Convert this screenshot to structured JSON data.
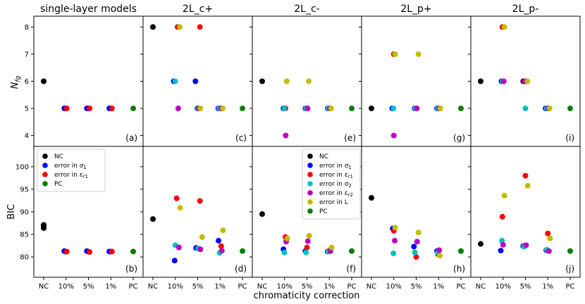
{
  "chart_data": {
    "type": "scatter",
    "x_categories": [
      "NC",
      "10%",
      "5%",
      "1%",
      "PC"
    ],
    "xlabel": "chromaticity correction",
    "ylabels": {
      "top": "N_fg",
      "bottom": "BIC"
    },
    "ylabel_top_main": "N",
    "ylabel_top_sub": "fg",
    "ylim_top": [
      3.6,
      8.4
    ],
    "ylim_bottom": [
      75.5,
      104.5
    ],
    "yticks_top": [
      4,
      5,
      6,
      7,
      8
    ],
    "yticks_bottom": [
      80,
      85,
      90,
      95,
      100
    ],
    "colors": {
      "NC": "#000000",
      "s1": "#0000ff",
      "er1": "#ff0000",
      "s2": "#00bfbf",
      "er2": "#bf00bf",
      "L": "#bfbf00",
      "PC": "#008000"
    },
    "legend_small": [
      {
        "key": "NC",
        "label": "NC"
      },
      {
        "key": "s1",
        "label": "error in σ",
        "sub": "1"
      },
      {
        "key": "er1",
        "label": "error in ε",
        "sub": "r1"
      },
      {
        "key": "PC",
        "label": "PC"
      }
    ],
    "legend_big": [
      {
        "key": "NC",
        "label": "NC"
      },
      {
        "key": "s1",
        "label": "error in σ",
        "sub": "1"
      },
      {
        "key": "er1",
        "label": "error in ε",
        "sub": "r1"
      },
      {
        "key": "s2",
        "label": "error in σ",
        "sub": "2"
      },
      {
        "key": "er2",
        "label": "error in ε",
        "sub": "r2"
      },
      {
        "key": "L",
        "label": "error in L"
      },
      {
        "key": "PC",
        "label": "PC"
      }
    ],
    "columns": [
      {
        "title": "single-layer models",
        "top_label": "(a)",
        "bottom_label": "(b)",
        "top": [
          {
            "key": "NC",
            "x": 0,
            "y": 6
          },
          {
            "key": "s1",
            "x": 0.92,
            "y": 5
          },
          {
            "key": "s1",
            "x": 0.97,
            "y": 5
          },
          {
            "key": "er1",
            "x": 1.03,
            "y": 5
          },
          {
            "key": "s1",
            "x": 1.93,
            "y": 5
          },
          {
            "key": "s1",
            "x": 1.98,
            "y": 5
          },
          {
            "key": "er1",
            "x": 2.05,
            "y": 5
          },
          {
            "key": "s1",
            "x": 2.93,
            "y": 5
          },
          {
            "key": "s1",
            "x": 2.98,
            "y": 5
          },
          {
            "key": "er1",
            "x": 3.05,
            "y": 5
          },
          {
            "key": "PC",
            "x": 4,
            "y": 5
          }
        ],
        "bottom": [
          {
            "key": "NC",
            "x": 0,
            "y": 87.1
          },
          {
            "key": "NC",
            "x": 0,
            "y": 86.8
          },
          {
            "key": "NC",
            "x": 0,
            "y": 86.4
          },
          {
            "key": "s1",
            "x": 0.92,
            "y": 81.3
          },
          {
            "key": "s1",
            "x": 0.97,
            "y": 81.2
          },
          {
            "key": "er1",
            "x": 1.03,
            "y": 81.2
          },
          {
            "key": "s1",
            "x": 1.93,
            "y": 81.3
          },
          {
            "key": "s1",
            "x": 1.98,
            "y": 81.2
          },
          {
            "key": "er1",
            "x": 2.05,
            "y": 81.1
          },
          {
            "key": "s1",
            "x": 2.93,
            "y": 81.2
          },
          {
            "key": "s1",
            "x": 2.98,
            "y": 81.2
          },
          {
            "key": "er1",
            "x": 3.05,
            "y": 81.2
          },
          {
            "key": "PC",
            "x": 4,
            "y": 81.2
          }
        ]
      },
      {
        "title": "2L_c+",
        "top_label": "(c)",
        "bottom_label": "(d)",
        "top": [
          {
            "key": "NC",
            "x": 0,
            "y": 8
          },
          {
            "key": "s1",
            "x": 0.93,
            "y": 6
          },
          {
            "key": "s2",
            "x": 0.99,
            "y": 6
          },
          {
            "key": "er1",
            "x": 1.1,
            "y": 8
          },
          {
            "key": "er2",
            "x": 1.13,
            "y": 5
          },
          {
            "key": "L",
            "x": 1.2,
            "y": 8
          },
          {
            "key": "s1",
            "x": 1.9,
            "y": 6
          },
          {
            "key": "er1",
            "x": 2.1,
            "y": 8
          },
          {
            "key": "s2",
            "x": 1.97,
            "y": 5
          },
          {
            "key": "er2",
            "x": 2.03,
            "y": 5
          },
          {
            "key": "L",
            "x": 2.12,
            "y": 5
          },
          {
            "key": "s1",
            "x": 2.92,
            "y": 5
          },
          {
            "key": "er1",
            "x": 3.0,
            "y": 5
          },
          {
            "key": "s2",
            "x": 2.96,
            "y": 5
          },
          {
            "key": "er2",
            "x": 3.05,
            "y": 5
          },
          {
            "key": "L",
            "x": 3.12,
            "y": 5
          },
          {
            "key": "PC",
            "x": 4,
            "y": 5
          }
        ],
        "bottom": [
          {
            "key": "NC",
            "x": 0,
            "y": 88.4
          },
          {
            "key": "s1",
            "x": 0.97,
            "y": 79.2
          },
          {
            "key": "er1",
            "x": 1.06,
            "y": 93.0
          },
          {
            "key": "s2",
            "x": 1.0,
            "y": 82.6
          },
          {
            "key": "er2",
            "x": 1.16,
            "y": 82.1
          },
          {
            "key": "L",
            "x": 1.22,
            "y": 90.9
          },
          {
            "key": "s1",
            "x": 1.93,
            "y": 82.0
          },
          {
            "key": "er1",
            "x": 2.1,
            "y": 92.4
          },
          {
            "key": "s2",
            "x": 2.02,
            "y": 81.9
          },
          {
            "key": "er2",
            "x": 2.12,
            "y": 81.7
          },
          {
            "key": "L",
            "x": 2.2,
            "y": 84.4
          },
          {
            "key": "s1",
            "x": 2.93,
            "y": 83.6
          },
          {
            "key": "er1",
            "x": 3.05,
            "y": 82.4
          },
          {
            "key": "s2",
            "x": 2.98,
            "y": 80.9
          },
          {
            "key": "er2",
            "x": 3.08,
            "y": 81.4
          },
          {
            "key": "L",
            "x": 3.13,
            "y": 85.9
          },
          {
            "key": "PC",
            "x": 4,
            "y": 81.3
          }
        ]
      },
      {
        "title": "2L_c-",
        "top_label": "(e)",
        "bottom_label": "(f)",
        "top": [
          {
            "key": "NC",
            "x": 0,
            "y": 6
          },
          {
            "key": "s1",
            "x": 0.95,
            "y": 5
          },
          {
            "key": "er1",
            "x": 1.04,
            "y": 5
          },
          {
            "key": "s2",
            "x": 0.99,
            "y": 5
          },
          {
            "key": "er2",
            "x": 1.05,
            "y": 4
          },
          {
            "key": "L",
            "x": 1.1,
            "y": 6
          },
          {
            "key": "s1",
            "x": 1.93,
            "y": 5
          },
          {
            "key": "er1",
            "x": 1.98,
            "y": 5
          },
          {
            "key": "s2",
            "x": 1.96,
            "y": 5
          },
          {
            "key": "er2",
            "x": 2.03,
            "y": 5
          },
          {
            "key": "L",
            "x": 2.08,
            "y": 6
          },
          {
            "key": "s1",
            "x": 2.93,
            "y": 5
          },
          {
            "key": "er1",
            "x": 2.98,
            "y": 5
          },
          {
            "key": "s2",
            "x": 2.96,
            "y": 5
          },
          {
            "key": "er2",
            "x": 3.03,
            "y": 5
          },
          {
            "key": "L",
            "x": 3.08,
            "y": 5
          },
          {
            "key": "PC",
            "x": 4,
            "y": 5
          }
        ],
        "bottom": [
          {
            "key": "NC",
            "x": 0,
            "y": 89.5
          },
          {
            "key": "s1",
            "x": 0.95,
            "y": 81.7
          },
          {
            "key": "er1",
            "x": 1.04,
            "y": 84.4
          },
          {
            "key": "s2",
            "x": 0.99,
            "y": 81.0
          },
          {
            "key": "er2",
            "x": 1.07,
            "y": 83.4
          },
          {
            "key": "L",
            "x": 1.12,
            "y": 84.1
          },
          {
            "key": "s1",
            "x": 1.93,
            "y": 81.3
          },
          {
            "key": "er1",
            "x": 2.0,
            "y": 82.1
          },
          {
            "key": "s2",
            "x": 1.96,
            "y": 81.0
          },
          {
            "key": "er2",
            "x": 2.04,
            "y": 83.5
          },
          {
            "key": "L",
            "x": 2.1,
            "y": 84.7
          },
          {
            "key": "s1",
            "x": 2.93,
            "y": 81.2
          },
          {
            "key": "er1",
            "x": 3.0,
            "y": 81.4
          },
          {
            "key": "s2",
            "x": 2.96,
            "y": 81.2
          },
          {
            "key": "er2",
            "x": 3.05,
            "y": 81.3
          },
          {
            "key": "L",
            "x": 3.1,
            "y": 82.1
          },
          {
            "key": "PC",
            "x": 4,
            "y": 81.3
          }
        ]
      },
      {
        "title": "2L_p+",
        "top_label": "(g)",
        "bottom_label": "(h)",
        "top": [
          {
            "key": "NC",
            "x": 0,
            "y": 5
          },
          {
            "key": "s1",
            "x": 0.93,
            "y": 5
          },
          {
            "key": "er1",
            "x": 1.0,
            "y": 7
          },
          {
            "key": "s2",
            "x": 0.98,
            "y": 5
          },
          {
            "key": "er2",
            "x": 1.0,
            "y": 4
          },
          {
            "key": "L",
            "x": 1.06,
            "y": 7
          },
          {
            "key": "s1",
            "x": 1.93,
            "y": 5
          },
          {
            "key": "er1",
            "x": 1.98,
            "y": 5
          },
          {
            "key": "s2",
            "x": 1.96,
            "y": 5
          },
          {
            "key": "er2",
            "x": 2.03,
            "y": 5
          },
          {
            "key": "L",
            "x": 2.1,
            "y": 7
          },
          {
            "key": "s1",
            "x": 2.93,
            "y": 5
          },
          {
            "key": "er1",
            "x": 2.98,
            "y": 5
          },
          {
            "key": "s2",
            "x": 2.96,
            "y": 5
          },
          {
            "key": "er2",
            "x": 3.03,
            "y": 5
          },
          {
            "key": "L",
            "x": 3.08,
            "y": 5
          },
          {
            "key": "PC",
            "x": 4,
            "y": 5
          }
        ],
        "bottom": [
          {
            "key": "NC",
            "x": 0,
            "y": 93.1
          },
          {
            "key": "s1",
            "x": 0.95,
            "y": 86.3
          },
          {
            "key": "er1",
            "x": 1.0,
            "y": 85.8
          },
          {
            "key": "s2",
            "x": 0.98,
            "y": 80.8
          },
          {
            "key": "er2",
            "x": 1.04,
            "y": 83.6
          },
          {
            "key": "L",
            "x": 1.06,
            "y": 86.5
          },
          {
            "key": "s1",
            "x": 1.9,
            "y": 82.3
          },
          {
            "key": "er1",
            "x": 2.0,
            "y": 80.0
          },
          {
            "key": "s2",
            "x": 1.94,
            "y": 81.0
          },
          {
            "key": "er2",
            "x": 2.04,
            "y": 83.4
          },
          {
            "key": "L",
            "x": 2.1,
            "y": 85.4
          },
          {
            "key": "s1",
            "x": 2.93,
            "y": 81.3
          },
          {
            "key": "er1",
            "x": 2.98,
            "y": 80.6
          },
          {
            "key": "s2",
            "x": 2.96,
            "y": 81.0
          },
          {
            "key": "er2",
            "x": 3.03,
            "y": 81.5
          },
          {
            "key": "L",
            "x": 3.06,
            "y": 80.3
          },
          {
            "key": "PC",
            "x": 4,
            "y": 81.3
          }
        ]
      },
      {
        "title": "2L_p-",
        "top_label": "(i)",
        "bottom_label": "(j)",
        "top": [
          {
            "key": "NC",
            "x": 0,
            "y": 6
          },
          {
            "key": "s1",
            "x": 0.93,
            "y": 6
          },
          {
            "key": "er1",
            "x": 0.97,
            "y": 8
          },
          {
            "key": "s2",
            "x": 0.98,
            "y": 6
          },
          {
            "key": "er2",
            "x": 1.03,
            "y": 6
          },
          {
            "key": "L",
            "x": 1.06,
            "y": 8
          },
          {
            "key": "s1",
            "x": 1.9,
            "y": 6
          },
          {
            "key": "er1",
            "x": 1.97,
            "y": 6
          },
          {
            "key": "s2",
            "x": 2.0,
            "y": 5
          },
          {
            "key": "er2",
            "x": 2.03,
            "y": 6
          },
          {
            "key": "L",
            "x": 2.09,
            "y": 6
          },
          {
            "key": "s1",
            "x": 2.9,
            "y": 5
          },
          {
            "key": "er1",
            "x": 2.98,
            "y": 5
          },
          {
            "key": "s2",
            "x": 2.95,
            "y": 5
          },
          {
            "key": "er2",
            "x": 3.03,
            "y": 5
          },
          {
            "key": "L",
            "x": 3.08,
            "y": 5
          },
          {
            "key": "PC",
            "x": 4,
            "y": 5
          }
        ],
        "bottom": [
          {
            "key": "NC",
            "x": 0,
            "y": 82.9
          },
          {
            "key": "s1",
            "x": 0.9,
            "y": 81.4
          },
          {
            "key": "er1",
            "x": 0.97,
            "y": 88.9
          },
          {
            "key": "s2",
            "x": 0.95,
            "y": 83.6
          },
          {
            "key": "er2",
            "x": 1.0,
            "y": 82.7
          },
          {
            "key": "L",
            "x": 1.06,
            "y": 93.6
          },
          {
            "key": "s1",
            "x": 1.9,
            "y": 82.4
          },
          {
            "key": "er1",
            "x": 2.0,
            "y": 98.0
          },
          {
            "key": "s2",
            "x": 1.94,
            "y": 82.3
          },
          {
            "key": "er2",
            "x": 2.03,
            "y": 82.6
          },
          {
            "key": "L",
            "x": 2.1,
            "y": 95.8
          },
          {
            "key": "s1",
            "x": 2.93,
            "y": 81.5
          },
          {
            "key": "er1",
            "x": 3.0,
            "y": 85.2
          },
          {
            "key": "s2",
            "x": 2.96,
            "y": 81.6
          },
          {
            "key": "er2",
            "x": 3.05,
            "y": 81.3
          },
          {
            "key": "L",
            "x": 3.1,
            "y": 84.1
          },
          {
            "key": "PC",
            "x": 4,
            "y": 81.3
          }
        ]
      }
    ]
  }
}
